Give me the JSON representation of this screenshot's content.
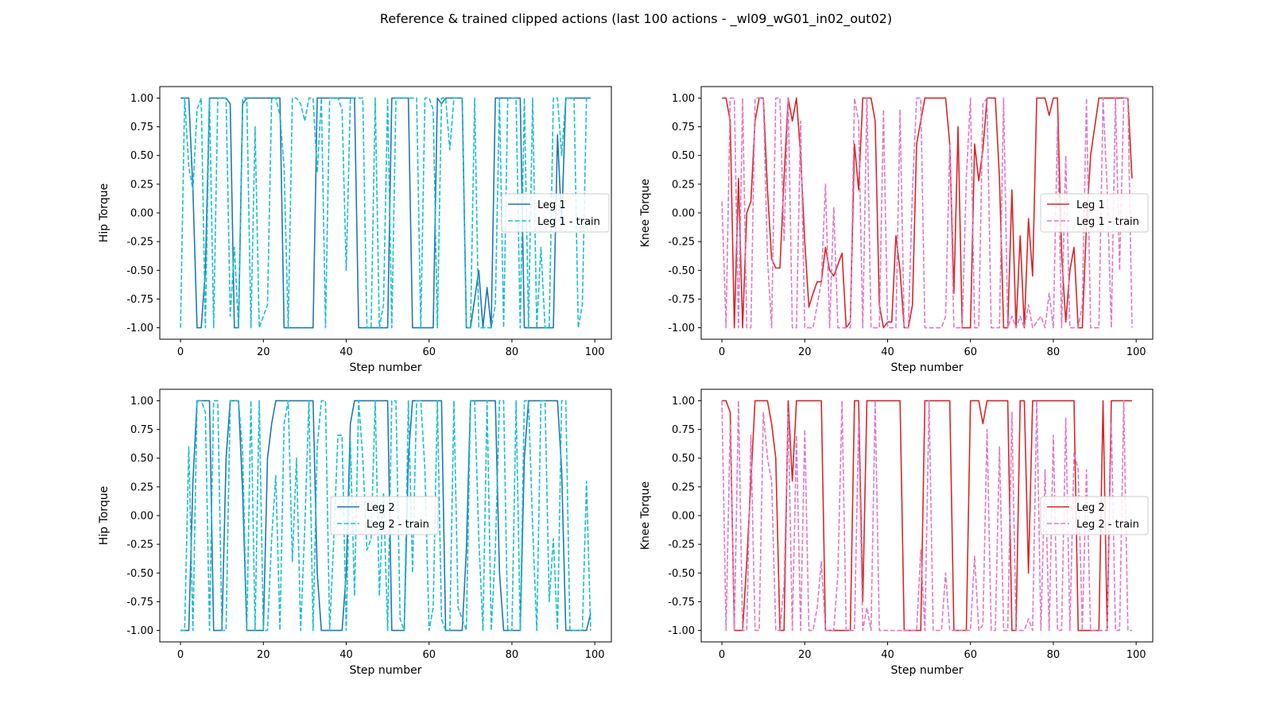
{
  "figure": {
    "title": "Reference & trained clipped actions (last 100 actions - _wl09_wG01_in02_out02)"
  },
  "colors": {
    "hip_ref": "#1f77b4",
    "hip_train": "#17becf",
    "knee_ref": "#d62728",
    "knee_train": "#e377c2"
  },
  "chart_data": [
    {
      "type": "line",
      "xlabel": "Step number",
      "ylabel": "Hip Torque",
      "xlim": [
        -5,
        104
      ],
      "ylim": [
        -1.1,
        1.1
      ],
      "xticks": [
        0,
        20,
        40,
        60,
        80,
        100
      ],
      "yticks": [
        -1.0,
        -0.75,
        -0.5,
        -0.25,
        0.0,
        0.25,
        0.5,
        0.75,
        1.0
      ],
      "legend_position": "center-right",
      "grid": false,
      "series": [
        {
          "name": "Leg 1",
          "color": "#1f77b4",
          "dashed": false,
          "x_start": 0,
          "values": [
            1,
            1,
            1,
            0.2,
            -1,
            -1,
            -0.5,
            1,
            1,
            1,
            1,
            1,
            0.95,
            -1,
            -1,
            0.95,
            1,
            1,
            1,
            1,
            1,
            1,
            1,
            1,
            1,
            -1,
            -1,
            -1,
            -1,
            -1,
            -1,
            -1,
            -1,
            1,
            1,
            1,
            1,
            1,
            1,
            1,
            1,
            1,
            1,
            -1,
            -1,
            -1,
            -1,
            -1,
            -1,
            -1,
            -1,
            1,
            1,
            1,
            1,
            1,
            -1,
            -1,
            -1,
            -1,
            -1,
            -1,
            1,
            0.95,
            1,
            1,
            1,
            1,
            1,
            -1,
            -1,
            -0.75,
            -0.5,
            -1,
            -0.65,
            -1,
            1,
            1,
            1,
            1,
            1,
            1,
            1,
            -1,
            -1,
            -1,
            -1,
            -1,
            -1,
            -1,
            -1,
            0.68,
            -0.1,
            1,
            1,
            1,
            1,
            1,
            1,
            1
          ]
        },
        {
          "name": "Leg 1 - train",
          "color": "#17becf",
          "dashed": true,
          "x_start": 0,
          "values": [
            -1,
            1,
            0.4,
            0.2,
            0.9,
            1,
            -1,
            1,
            -1,
            1,
            1,
            1,
            -0.9,
            -0.3,
            -1,
            1,
            1,
            -1,
            0.75,
            -1,
            -0.9,
            -0.8,
            1,
            1,
            0.85,
            0.4,
            -1,
            1,
            1,
            0.95,
            0.8,
            1,
            1,
            0.35,
            1,
            -1,
            1,
            1,
            1,
            0.9,
            -0.5,
            1,
            1,
            1,
            1,
            -1,
            -1,
            1,
            -1,
            -0.8,
            1,
            -1,
            1,
            1,
            1,
            1,
            1,
            1,
            -1,
            1,
            1,
            0.9,
            -1,
            1,
            1,
            0.55,
            1,
            1,
            1,
            -1,
            -1,
            1,
            -1,
            -1,
            -1,
            -1,
            -0.8,
            1,
            -1,
            1,
            1,
            1,
            -1,
            1,
            -1,
            1,
            -1,
            -0.3,
            -1,
            -1,
            1,
            1,
            0.5,
            1,
            1,
            1,
            -1,
            -0.8,
            1,
            1
          ]
        }
      ]
    },
    {
      "type": "line",
      "xlabel": "Step number",
      "ylabel": "Knee Torque",
      "xlim": [
        -5,
        104
      ],
      "ylim": [
        -1.1,
        1.1
      ],
      "xticks": [
        0,
        20,
        40,
        60,
        80,
        100
      ],
      "yticks": [
        -1.0,
        -0.75,
        -0.5,
        -0.25,
        0.0,
        0.25,
        0.5,
        0.75,
        1.0
      ],
      "legend_position": "center-right",
      "grid": false,
      "series": [
        {
          "name": "Leg 1",
          "color": "#d62728",
          "dashed": false,
          "x_start": 0,
          "values": [
            1,
            1,
            0.8,
            -1,
            0.3,
            -1,
            0,
            0.1,
            0.8,
            1,
            1,
            0.2,
            -0.4,
            -0.48,
            -0.48,
            0.3,
            1,
            0.8,
            1,
            0.5,
            -0.25,
            -0.82,
            -0.7,
            -0.6,
            -0.6,
            -0.3,
            -0.5,
            -0.55,
            -0.45,
            -0.35,
            -1,
            -0.95,
            0.6,
            0.2,
            1,
            1,
            1,
            0.8,
            -0.8,
            -1,
            -0.95,
            -0.95,
            -0.2,
            -0.5,
            -1,
            -1,
            -0.8,
            0.6,
            0.8,
            1,
            1,
            1,
            1,
            1,
            1,
            0.6,
            -0.7,
            0.75,
            -1,
            -1,
            -1,
            0.6,
            0.28,
            0.55,
            1,
            1,
            1,
            0.3,
            -1,
            -1,
            0.2,
            -1,
            -0.2,
            -1,
            -0.05,
            -0.55,
            1,
            1,
            1,
            0.85,
            1,
            1,
            -0.35,
            -0.95,
            -0.5,
            -0.3,
            -1,
            -1,
            -0.1,
            0.5,
            0.75,
            1,
            1,
            1,
            1,
            1,
            1,
            1,
            1,
            0.3
          ]
        },
        {
          "name": "Leg 1 - train",
          "color": "#e377c2",
          "dashed": true,
          "x_start": 0,
          "values": [
            0.1,
            -1,
            1,
            1,
            -1,
            1,
            -1,
            -1,
            1,
            1,
            1,
            -0.4,
            -1,
            1,
            1,
            -0.25,
            1,
            -1,
            -1,
            0.8,
            -1,
            -1,
            -1,
            -0.8,
            -0.6,
            0.25,
            -1,
            0.05,
            -1,
            -1,
            -1,
            -1,
            1,
            0.8,
            -1,
            1,
            -1,
            -1,
            -1,
            0.9,
            -1,
            -1,
            -1,
            0.9,
            -1,
            -1,
            0.2,
            1,
            1,
            -1,
            -1,
            -1,
            -1,
            -1,
            -0.9,
            0.6,
            -1,
            -1,
            -1,
            0.3,
            1,
            -1,
            -1,
            0.95,
            1,
            -1,
            -1,
            -1,
            1,
            -1,
            -0.9,
            -1,
            -0.9,
            -1,
            -0.8,
            -1,
            -0.95,
            -0.9,
            -1,
            -0.7,
            -1,
            0.75,
            -1,
            0.5,
            -1,
            -1,
            -1,
            -0.8,
            1,
            -1,
            -1,
            -1,
            1,
            0.2,
            -1,
            1,
            -0.5,
            1,
            1,
            -1
          ]
        }
      ]
    },
    {
      "type": "line",
      "xlabel": "Step number",
      "ylabel": "Hip Torque",
      "xlim": [
        -5,
        104
      ],
      "ylim": [
        -1.1,
        1.1
      ],
      "xticks": [
        0,
        20,
        40,
        60,
        80,
        100
      ],
      "yticks": [
        -1.0,
        -0.75,
        -0.5,
        -0.25,
        0.0,
        0.25,
        0.5,
        0.75,
        1.0
      ],
      "legend_position": "center",
      "grid": false,
      "series": [
        {
          "name": "Leg 2",
          "color": "#1f77b4",
          "dashed": false,
          "x_start": 0,
          "values": [
            -1,
            -1,
            -1,
            0.3,
            1,
            1,
            1,
            1,
            -1,
            -1,
            -1,
            0.5,
            1,
            1,
            1,
            0.2,
            -1,
            -1,
            -1,
            -1,
            -1,
            0.5,
            0.8,
            1,
            1,
            1,
            1,
            1,
            1,
            1,
            1,
            1,
            1,
            -0.5,
            -1,
            -1,
            -1,
            -1,
            -1,
            -1,
            -0.5,
            0.8,
            1,
            1,
            1,
            1,
            1,
            1,
            1,
            1,
            1,
            -1,
            -1,
            -1,
            -1,
            0.5,
            1,
            1,
            1,
            1,
            1,
            1,
            1,
            1,
            -1,
            -1,
            -1,
            -1,
            -1,
            -0.3,
            1,
            1,
            1,
            1,
            1,
            1,
            1,
            -0.5,
            -1,
            -1,
            -1,
            -1,
            -1,
            0.5,
            1,
            1,
            1,
            1,
            1,
            1,
            1,
            1,
            0.4,
            -1,
            -1,
            -1,
            -1,
            -1,
            -1,
            -0.85
          ]
        },
        {
          "name": "Leg 2 - train",
          "color": "#17becf",
          "dashed": true,
          "x_start": 0,
          "values": [
            -1,
            -1,
            0.6,
            -1,
            1,
            1,
            0.9,
            -1,
            1,
            1,
            -1,
            -1,
            1,
            1,
            1,
            0.55,
            -1,
            1,
            -1,
            1,
            -1,
            -1,
            -0.2,
            0.35,
            -1,
            0.8,
            1,
            -0.4,
            0.5,
            -1,
            -0.1,
            1,
            -1,
            0.6,
            1,
            1,
            -1,
            -0.2,
            0.7,
            0.7,
            -1,
            0.65,
            -0.7,
            1,
            0.5,
            -0.3,
            -0.2,
            1,
            -0.7,
            0.2,
            -1,
            1,
            1,
            -0.9,
            -1,
            1,
            -0.5,
            1,
            1,
            0.4,
            -1,
            -0.8,
            1,
            -0.9,
            -1,
            -1,
            1,
            -0.8,
            -0.9,
            -1,
            1,
            1,
            -0.2,
            -1,
            1,
            -1,
            -0.3,
            1,
            1,
            -1,
            -1,
            1,
            -1,
            1,
            1,
            -0.1,
            -1,
            1,
            1,
            -0.75,
            -0.2,
            -1,
            1,
            1,
            -1,
            -1,
            -1,
            -1,
            0.3,
            -1
          ]
        }
      ]
    },
    {
      "type": "line",
      "xlabel": "Step number",
      "ylabel": "Knee Torque",
      "xlim": [
        -5,
        104
      ],
      "ylim": [
        -1.1,
        1.1
      ],
      "xticks": [
        0,
        20,
        40,
        60,
        80,
        100
      ],
      "yticks": [
        -1.0,
        -0.75,
        -0.5,
        -0.25,
        0.0,
        0.25,
        0.5,
        0.75,
        1.0
      ],
      "legend_position": "center-right",
      "grid": false,
      "series": [
        {
          "name": "Leg 2",
          "color": "#d62728",
          "dashed": false,
          "x_start": 0,
          "values": [
            1,
            1,
            0.9,
            -1,
            -1,
            -1,
            -0.4,
            0.3,
            1,
            1,
            1,
            1,
            0.8,
            0.5,
            -1,
            -1,
            1,
            0.3,
            1,
            1,
            1,
            1,
            1,
            1,
            1,
            -1,
            -1,
            -1,
            -1,
            -1,
            -1,
            -1,
            1,
            1,
            -0.75,
            1,
            1,
            1,
            1,
            1,
            1,
            1,
            1,
            1,
            -1,
            -1,
            -1,
            -1,
            -1,
            1,
            1,
            1,
            1,
            1,
            1,
            1,
            -1,
            -1,
            -1,
            -1,
            1,
            1,
            1,
            0.8,
            1,
            1,
            1,
            1,
            1,
            1,
            -1,
            -1,
            1,
            1,
            -0.5,
            1,
            1,
            1,
            1,
            1,
            1,
            1,
            1,
            1,
            1,
            1,
            -1,
            -1,
            -1,
            -1,
            -1,
            -1,
            1,
            -1,
            1,
            1,
            1,
            1,
            1,
            1
          ]
        },
        {
          "name": "Leg 2 - train",
          "color": "#e377c2",
          "dashed": true,
          "x_start": 0,
          "values": [
            1,
            -1,
            0.8,
            -1,
            1,
            -1,
            -1,
            0.7,
            -1,
            -1,
            0.9,
            0.5,
            0.3,
            -1,
            -1,
            -0.6,
            0.9,
            -1,
            0.7,
            -1,
            0.75,
            -1,
            -1,
            -0.8,
            -0.4,
            -1,
            -1,
            -1,
            -0.5,
            1,
            -1,
            -1,
            -1,
            0.8,
            -1,
            -0.8,
            -1,
            1,
            -1,
            -1,
            -1,
            -1,
            -1,
            -1,
            -1,
            -1,
            -1,
            -1,
            -0.3,
            -1,
            1,
            -1,
            -1,
            -1,
            -0.5,
            -1,
            -1,
            -1,
            -1,
            -1,
            -1,
            -0.35,
            -1,
            -0.95,
            0.75,
            -1,
            -1,
            0.6,
            -1,
            -1,
            0.9,
            -1,
            -1,
            -1,
            -0.9,
            -1,
            1,
            -1,
            0.4,
            -1,
            0.7,
            -1,
            -1,
            0.85,
            -1,
            0.55,
            0.4,
            -1,
            0.4,
            -1,
            -1,
            -1,
            -1,
            -1,
            0.8,
            -1,
            -1,
            1,
            -1,
            -1
          ]
        }
      ]
    }
  ]
}
